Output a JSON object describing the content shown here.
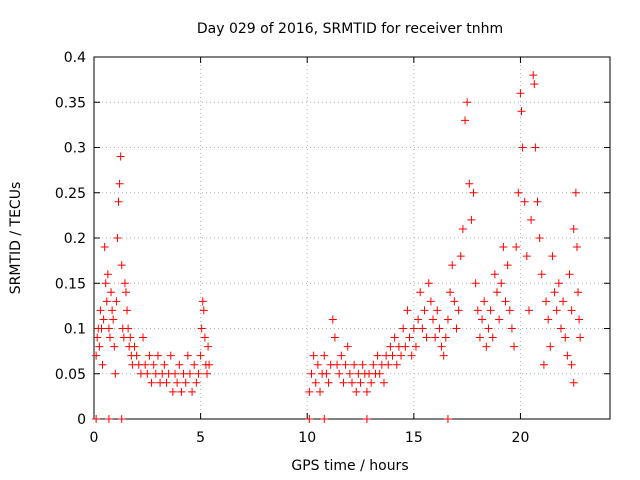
{
  "chart_data": {
    "type": "scatter",
    "title": "Day 029 of 2016, SRMTID for receiver tnhm",
    "xlabel": "GPS time / hours",
    "ylabel": "SRMTID / TECUs",
    "xlim": [
      0,
      24.2
    ],
    "ylim": [
      0,
      0.4
    ],
    "xticks": [
      0,
      5,
      10,
      15,
      20
    ],
    "xtick_labels": [
      "0",
      "5",
      "10",
      "15",
      "20"
    ],
    "yticks": [
      0,
      0.05,
      0.1,
      0.15,
      0.2,
      0.25,
      0.3,
      0.35,
      0.4
    ],
    "ytick_labels": [
      "0",
      "0.05",
      "0.1",
      "0.15",
      "0.2",
      "0.25",
      "0.3",
      "0.35",
      "0.4"
    ],
    "grid": true,
    "marker": "+",
    "color": "#ff0000",
    "series": [
      {
        "name": "SRMTID",
        "points": [
          [
            0.1,
            0.07
          ],
          [
            0.15,
            0.09
          ],
          [
            0.2,
            0.1
          ],
          [
            0.25,
            0.08
          ],
          [
            0.3,
            0.12
          ],
          [
            0.35,
            0.1
          ],
          [
            0.4,
            0.06
          ],
          [
            0.45,
            0.11
          ],
          [
            0.5,
            0.19
          ],
          [
            0.55,
            0.15
          ],
          [
            0.6,
            0.13
          ],
          [
            0.65,
            0.16
          ],
          [
            0.7,
            0.1
          ],
          [
            0.75,
            0.09
          ],
          [
            0.8,
            0.14
          ],
          [
            0.85,
            0.12
          ],
          [
            0.9,
            0.11
          ],
          [
            0.95,
            0.08
          ],
          [
            1.0,
            0.05
          ],
          [
            1.05,
            0.13
          ],
          [
            1.1,
            0.2
          ],
          [
            1.15,
            0.24
          ],
          [
            1.2,
            0.26
          ],
          [
            1.25,
            0.29
          ],
          [
            1.3,
            0.17
          ],
          [
            1.35,
            0.1
          ],
          [
            1.4,
            0.09
          ],
          [
            1.45,
            0.15
          ],
          [
            1.5,
            0.14
          ],
          [
            1.55,
            0.12
          ],
          [
            1.6,
            0.1
          ],
          [
            1.65,
            0.08
          ],
          [
            1.7,
            0.09
          ],
          [
            1.75,
            0.07
          ],
          [
            1.8,
            0.06
          ],
          [
            1.9,
            0.08
          ],
          [
            2.0,
            0.07
          ],
          [
            2.1,
            0.06
          ],
          [
            2.2,
            0.05
          ],
          [
            2.3,
            0.09
          ],
          [
            2.4,
            0.06
          ],
          [
            2.5,
            0.05
          ],
          [
            2.6,
            0.07
          ],
          [
            2.7,
            0.04
          ],
          [
            2.8,
            0.06
          ],
          [
            2.9,
            0.05
          ],
          [
            3.0,
            0.07
          ],
          [
            3.1,
            0.04
          ],
          [
            3.2,
            0.05
          ],
          [
            3.3,
            0.06
          ],
          [
            3.4,
            0.04
          ],
          [
            3.5,
            0.05
          ],
          [
            3.6,
            0.07
          ],
          [
            3.7,
            0.03
          ],
          [
            3.8,
            0.05
          ],
          [
            3.9,
            0.04
          ],
          [
            4.0,
            0.06
          ],
          [
            4.1,
            0.03
          ],
          [
            4.2,
            0.05
          ],
          [
            4.3,
            0.04
          ],
          [
            4.4,
            0.07
          ],
          [
            4.5,
            0.05
          ],
          [
            4.6,
            0.03
          ],
          [
            4.7,
            0.06
          ],
          [
            4.8,
            0.04
          ],
          [
            4.9,
            0.05
          ],
          [
            5.0,
            0.07
          ],
          [
            5.05,
            0.1
          ],
          [
            5.1,
            0.13
          ],
          [
            5.15,
            0.12
          ],
          [
            5.2,
            0.09
          ],
          [
            5.25,
            0.06
          ],
          [
            5.3,
            0.05
          ],
          [
            5.35,
            0.08
          ],
          [
            5.4,
            0.06
          ],
          [
            10.1,
            0.03
          ],
          [
            10.2,
            0.05
          ],
          [
            10.3,
            0.07
          ],
          [
            10.4,
            0.04
          ],
          [
            10.5,
            0.06
          ],
          [
            10.6,
            0.03
          ],
          [
            10.7,
            0.05
          ],
          [
            10.8,
            0.07
          ],
          [
            10.9,
            0.05
          ],
          [
            11.0,
            0.04
          ],
          [
            11.1,
            0.06
          ],
          [
            11.2,
            0.11
          ],
          [
            11.3,
            0.09
          ],
          [
            11.4,
            0.06
          ],
          [
            11.5,
            0.05
          ],
          [
            11.6,
            0.07
          ],
          [
            11.7,
            0.04
          ],
          [
            11.8,
            0.06
          ],
          [
            11.9,
            0.08
          ],
          [
            12.0,
            0.05
          ],
          [
            12.1,
            0.04
          ],
          [
            12.2,
            0.06
          ],
          [
            12.3,
            0.03
          ],
          [
            12.4,
            0.05
          ],
          [
            12.5,
            0.04
          ],
          [
            12.6,
            0.06
          ],
          [
            12.7,
            0.05
          ],
          [
            12.8,
            0.03
          ],
          [
            12.9,
            0.05
          ],
          [
            13.0,
            0.04
          ],
          [
            13.1,
            0.06
          ],
          [
            13.2,
            0.05
          ],
          [
            13.3,
            0.07
          ],
          [
            13.4,
            0.05
          ],
          [
            13.5,
            0.06
          ],
          [
            13.6,
            0.04
          ],
          [
            13.7,
            0.07
          ],
          [
            13.8,
            0.06
          ],
          [
            13.9,
            0.08
          ],
          [
            14.0,
            0.07
          ],
          [
            14.1,
            0.09
          ],
          [
            14.2,
            0.06
          ],
          [
            14.3,
            0.08
          ],
          [
            14.4,
            0.07
          ],
          [
            14.5,
            0.1
          ],
          [
            14.6,
            0.08
          ],
          [
            14.7,
            0.12
          ],
          [
            14.8,
            0.09
          ],
          [
            14.9,
            0.07
          ],
          [
            15.0,
            0.1
          ],
          [
            15.1,
            0.08
          ],
          [
            15.2,
            0.11
          ],
          [
            15.3,
            0.14
          ],
          [
            15.4,
            0.1
          ],
          [
            15.5,
            0.12
          ],
          [
            15.6,
            0.09
          ],
          [
            15.7,
            0.15
          ],
          [
            15.8,
            0.13
          ],
          [
            15.9,
            0.11
          ],
          [
            16.0,
            0.09
          ],
          [
            16.1,
            0.12
          ],
          [
            16.2,
            0.1
          ],
          [
            16.3,
            0.08
          ],
          [
            16.4,
            0.07
          ],
          [
            16.5,
            0.09
          ],
          [
            16.6,
            0.11
          ],
          [
            16.7,
            0.14
          ],
          [
            16.8,
            0.17
          ],
          [
            16.9,
            0.13
          ],
          [
            17.0,
            0.1
          ],
          [
            17.1,
            0.12
          ],
          [
            17.2,
            0.18
          ],
          [
            17.3,
            0.21
          ],
          [
            17.4,
            0.33
          ],
          [
            17.5,
            0.35
          ],
          [
            17.6,
            0.26
          ],
          [
            17.7,
            0.22
          ],
          [
            17.8,
            0.25
          ],
          [
            17.9,
            0.15
          ],
          [
            18.0,
            0.12
          ],
          [
            18.1,
            0.09
          ],
          [
            18.2,
            0.11
          ],
          [
            18.3,
            0.13
          ],
          [
            18.4,
            0.08
          ],
          [
            18.5,
            0.1
          ],
          [
            18.6,
            0.12
          ],
          [
            18.7,
            0.09
          ],
          [
            18.8,
            0.16
          ],
          [
            18.9,
            0.14
          ],
          [
            19.0,
            0.11
          ],
          [
            19.1,
            0.15
          ],
          [
            19.2,
            0.19
          ],
          [
            19.3,
            0.13
          ],
          [
            19.4,
            0.17
          ],
          [
            19.5,
            0.12
          ],
          [
            19.6,
            0.1
          ],
          [
            19.7,
            0.08
          ],
          [
            19.8,
            0.19
          ],
          [
            19.9,
            0.25
          ],
          [
            20.0,
            0.36
          ],
          [
            20.05,
            0.34
          ],
          [
            20.1,
            0.3
          ],
          [
            20.2,
            0.24
          ],
          [
            20.3,
            0.18
          ],
          [
            20.4,
            0.12
          ],
          [
            20.5,
            0.22
          ],
          [
            20.6,
            0.38
          ],
          [
            20.65,
            0.37
          ],
          [
            20.7,
            0.3
          ],
          [
            20.8,
            0.24
          ],
          [
            20.9,
            0.2
          ],
          [
            21.0,
            0.16
          ],
          [
            21.1,
            0.06
          ],
          [
            21.2,
            0.13
          ],
          [
            21.3,
            0.11
          ],
          [
            21.4,
            0.08
          ],
          [
            21.5,
            0.18
          ],
          [
            21.6,
            0.14
          ],
          [
            21.7,
            0.12
          ],
          [
            21.8,
            0.15
          ],
          [
            21.9,
            0.1
          ],
          [
            22.0,
            0.13
          ],
          [
            22.1,
            0.09
          ],
          [
            22.2,
            0.07
          ],
          [
            22.3,
            0.16
          ],
          [
            22.4,
            0.12
          ],
          [
            22.5,
            0.21
          ],
          [
            22.6,
            0.25
          ],
          [
            22.65,
            0.19
          ],
          [
            22.7,
            0.14
          ],
          [
            22.75,
            0.11
          ],
          [
            22.8,
            0.09
          ],
          [
            22.5,
            0.04
          ],
          [
            22.4,
            0.06
          ]
        ]
      }
    ],
    "zero_markers": [
      0.1,
      0.7,
      1.3,
      10.1,
      10.8,
      12.8,
      16.6
    ]
  }
}
